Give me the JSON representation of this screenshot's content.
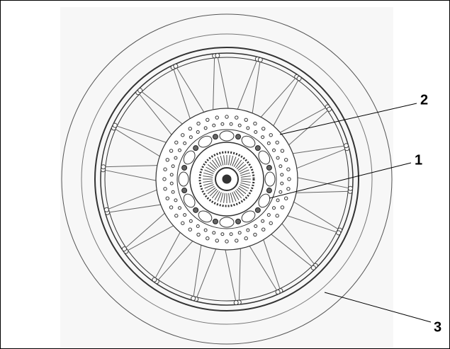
{
  "callouts": [
    {
      "label": "2"
    },
    {
      "label": "1"
    },
    {
      "label": "3"
    }
  ]
}
